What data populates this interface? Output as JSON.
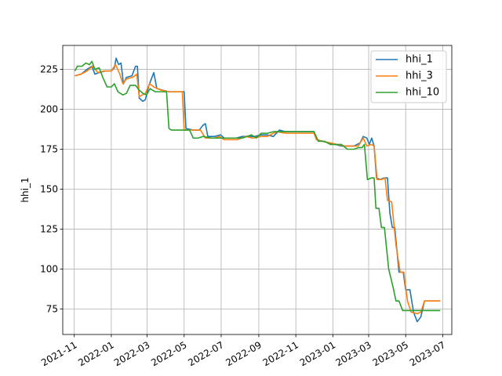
{
  "chart_data": {
    "type": "line",
    "title": "",
    "xlabel": "",
    "ylabel": "hhi_1",
    "grid": true,
    "legend_position": "top-right",
    "xlim": [
      "2021-10-13",
      "2023-07-16"
    ],
    "ylim": [
      59,
      240
    ],
    "x_ticks": [
      "2021-11-01",
      "2022-01-01",
      "2022-03-01",
      "2022-05-01",
      "2022-07-01",
      "2022-09-01",
      "2022-11-01",
      "2023-01-01",
      "2023-03-01",
      "2023-05-01",
      "2023-07-01"
    ],
    "x_tick_labels": [
      "2021-11",
      "2022-01",
      "2022-03",
      "2022-05",
      "2022-07",
      "2022-09",
      "2022-11",
      "2023-01",
      "2023-03",
      "2023-05",
      "2023-07"
    ],
    "y_ticks": [
      75,
      100,
      125,
      150,
      175,
      200,
      225
    ],
    "y_tick_labels": [
      "75",
      "100",
      "125",
      "150",
      "175",
      "200",
      "225"
    ],
    "series": [
      {
        "name": "hhi_1",
        "color": "#1f77b4",
        "points": [
          [
            "2021-11-02",
            221
          ],
          [
            "2021-11-12",
            222
          ],
          [
            "2021-11-22",
            225
          ],
          [
            "2021-11-30",
            227
          ],
          [
            "2021-12-05",
            222
          ],
          [
            "2021-12-12",
            223
          ],
          [
            "2021-12-22",
            224
          ],
          [
            "2022-01-01",
            224
          ],
          [
            "2022-01-06",
            226
          ],
          [
            "2022-01-09",
            232
          ],
          [
            "2022-01-13",
            228
          ],
          [
            "2022-01-17",
            229
          ],
          [
            "2022-01-21",
            216
          ],
          [
            "2022-01-26",
            220
          ],
          [
            "2022-02-04",
            221
          ],
          [
            "2022-02-10",
            227
          ],
          [
            "2022-02-13",
            227
          ],
          [
            "2022-02-16",
            207
          ],
          [
            "2022-02-22",
            205
          ],
          [
            "2022-02-26",
            206
          ],
          [
            "2022-03-04",
            215
          ],
          [
            "2022-03-12",
            223
          ],
          [
            "2022-03-17",
            213
          ],
          [
            "2022-03-26",
            212
          ],
          [
            "2022-04-06",
            211
          ],
          [
            "2022-04-16",
            211
          ],
          [
            "2022-04-26",
            211
          ],
          [
            "2022-05-01",
            211
          ],
          [
            "2022-05-04",
            188
          ],
          [
            "2022-05-16",
            187
          ],
          [
            "2022-05-26",
            187
          ],
          [
            "2022-06-01",
            190
          ],
          [
            "2022-06-05",
            191
          ],
          [
            "2022-06-09",
            183
          ],
          [
            "2022-06-20",
            183
          ],
          [
            "2022-06-30",
            184
          ],
          [
            "2022-07-06",
            182
          ],
          [
            "2022-07-16",
            182
          ],
          [
            "2022-07-26",
            182
          ],
          [
            "2022-08-05",
            183
          ],
          [
            "2022-08-15",
            183
          ],
          [
            "2022-08-25",
            183
          ],
          [
            "2022-09-05",
            184
          ],
          [
            "2022-09-15",
            184
          ],
          [
            "2022-09-25",
            183
          ],
          [
            "2022-10-05",
            187
          ],
          [
            "2022-10-15",
            186
          ],
          [
            "2022-10-25",
            186
          ],
          [
            "2022-11-05",
            186
          ],
          [
            "2022-11-15",
            186
          ],
          [
            "2022-11-25",
            186
          ],
          [
            "2022-12-01",
            186
          ],
          [
            "2022-12-05",
            181
          ],
          [
            "2022-12-15",
            180
          ],
          [
            "2022-12-25",
            179
          ],
          [
            "2023-01-05",
            178
          ],
          [
            "2023-01-15",
            177
          ],
          [
            "2023-01-25",
            177
          ],
          [
            "2023-02-05",
            177
          ],
          [
            "2023-02-15",
            179
          ],
          [
            "2023-02-20",
            183
          ],
          [
            "2023-02-26",
            182
          ],
          [
            "2023-03-02",
            178
          ],
          [
            "2023-03-06",
            182
          ],
          [
            "2023-03-10",
            177
          ],
          [
            "2023-03-14",
            157
          ],
          [
            "2023-03-20",
            156
          ],
          [
            "2023-03-26",
            157
          ],
          [
            "2023-04-01",
            157
          ],
          [
            "2023-04-05",
            135
          ],
          [
            "2023-04-09",
            126
          ],
          [
            "2023-04-13",
            126
          ],
          [
            "2023-04-20",
            98
          ],
          [
            "2023-04-27",
            98
          ],
          [
            "2023-05-01",
            87
          ],
          [
            "2023-05-08",
            87
          ],
          [
            "2023-05-14",
            73
          ],
          [
            "2023-05-20",
            67
          ],
          [
            "2023-05-26",
            70
          ],
          [
            "2023-06-01",
            80
          ],
          [
            "2023-06-13",
            80
          ],
          [
            "2023-06-27",
            80
          ]
        ]
      },
      {
        "name": "hhi_3",
        "color": "#ff7f0e",
        "points": [
          [
            "2021-11-02",
            221
          ],
          [
            "2021-11-12",
            222
          ],
          [
            "2021-11-22",
            224
          ],
          [
            "2021-12-01",
            227
          ],
          [
            "2021-12-10",
            223
          ],
          [
            "2021-12-20",
            224
          ],
          [
            "2022-01-01",
            224
          ],
          [
            "2022-01-08",
            228
          ],
          [
            "2022-01-15",
            222
          ],
          [
            "2022-01-20",
            216
          ],
          [
            "2022-01-26",
            219
          ],
          [
            "2022-02-05",
            220
          ],
          [
            "2022-02-12",
            222
          ],
          [
            "2022-02-16",
            208
          ],
          [
            "2022-02-26",
            210
          ],
          [
            "2022-03-05",
            216
          ],
          [
            "2022-03-12",
            214
          ],
          [
            "2022-03-24",
            212
          ],
          [
            "2022-04-06",
            211
          ],
          [
            "2022-04-18",
            211
          ],
          [
            "2022-04-28",
            211
          ],
          [
            "2022-05-01",
            187
          ],
          [
            "2022-05-16",
            187
          ],
          [
            "2022-05-28",
            187
          ],
          [
            "2022-06-05",
            182
          ],
          [
            "2022-06-20",
            182
          ],
          [
            "2022-06-28",
            183
          ],
          [
            "2022-07-06",
            181
          ],
          [
            "2022-07-18",
            181
          ],
          [
            "2022-07-28",
            181
          ],
          [
            "2022-08-10",
            183
          ],
          [
            "2022-08-22",
            182
          ],
          [
            "2022-09-05",
            183
          ],
          [
            "2022-09-15",
            183
          ],
          [
            "2022-09-25",
            185
          ],
          [
            "2022-10-01",
            186
          ],
          [
            "2022-10-15",
            185
          ],
          [
            "2022-10-25",
            185
          ],
          [
            "2022-11-05",
            185
          ],
          [
            "2022-11-15",
            185
          ],
          [
            "2022-11-25",
            185
          ],
          [
            "2022-12-01",
            185
          ],
          [
            "2022-12-05",
            181
          ],
          [
            "2022-12-15",
            180
          ],
          [
            "2022-12-28",
            179
          ],
          [
            "2023-01-08",
            178
          ],
          [
            "2023-01-20",
            177
          ],
          [
            "2023-02-02",
            177
          ],
          [
            "2023-02-12",
            177
          ],
          [
            "2023-02-20",
            182
          ],
          [
            "2023-02-26",
            177
          ],
          [
            "2023-03-05",
            178
          ],
          [
            "2023-03-10",
            177
          ],
          [
            "2023-03-15",
            156
          ],
          [
            "2023-03-22",
            156
          ],
          [
            "2023-03-28",
            157
          ],
          [
            "2023-04-01",
            143
          ],
          [
            "2023-04-08",
            142
          ],
          [
            "2023-04-15",
            115
          ],
          [
            "2023-04-22",
            98
          ],
          [
            "2023-04-28",
            98
          ],
          [
            "2023-05-04",
            80
          ],
          [
            "2023-05-10",
            73
          ],
          [
            "2023-05-20",
            72
          ],
          [
            "2023-05-26",
            73
          ],
          [
            "2023-06-01",
            80
          ],
          [
            "2023-06-13",
            80
          ],
          [
            "2023-06-27",
            80
          ]
        ]
      },
      {
        "name": "hhi_10",
        "color": "#2ca02c",
        "points": [
          [
            "2021-11-02",
            224
          ],
          [
            "2021-11-06",
            227
          ],
          [
            "2021-11-14",
            227
          ],
          [
            "2021-11-20",
            229
          ],
          [
            "2021-11-26",
            228
          ],
          [
            "2021-11-30",
            230
          ],
          [
            "2021-12-05",
            225
          ],
          [
            "2021-12-12",
            226
          ],
          [
            "2021-12-18",
            220
          ],
          [
            "2021-12-25",
            214
          ],
          [
            "2022-01-01",
            214
          ],
          [
            "2022-01-06",
            216
          ],
          [
            "2022-01-12",
            211
          ],
          [
            "2022-01-20",
            209
          ],
          [
            "2022-01-26",
            210
          ],
          [
            "2022-02-01",
            215
          ],
          [
            "2022-02-10",
            215
          ],
          [
            "2022-02-16",
            212
          ],
          [
            "2022-02-22",
            210
          ],
          [
            "2022-02-28",
            209
          ],
          [
            "2022-03-06",
            213
          ],
          [
            "2022-03-14",
            211
          ],
          [
            "2022-03-26",
            211
          ],
          [
            "2022-04-02",
            211
          ],
          [
            "2022-04-06",
            188
          ],
          [
            "2022-04-10",
            187
          ],
          [
            "2022-04-22",
            187
          ],
          [
            "2022-05-02",
            187
          ],
          [
            "2022-05-10",
            187
          ],
          [
            "2022-05-16",
            182
          ],
          [
            "2022-05-24",
            182
          ],
          [
            "2022-06-01",
            183
          ],
          [
            "2022-06-15",
            182
          ],
          [
            "2022-06-30",
            182
          ],
          [
            "2022-07-10",
            182
          ],
          [
            "2022-07-25",
            182
          ],
          [
            "2022-08-05",
            182
          ],
          [
            "2022-08-20",
            184
          ],
          [
            "2022-08-28",
            182
          ],
          [
            "2022-09-05",
            185
          ],
          [
            "2022-09-15",
            185
          ],
          [
            "2022-09-25",
            186
          ],
          [
            "2022-10-05",
            186
          ],
          [
            "2022-10-15",
            186
          ],
          [
            "2022-10-25",
            186
          ],
          [
            "2022-11-05",
            186
          ],
          [
            "2022-11-15",
            186
          ],
          [
            "2022-11-25",
            186
          ],
          [
            "2022-12-01",
            186
          ],
          [
            "2022-12-08",
            180
          ],
          [
            "2022-12-18",
            180
          ],
          [
            "2022-12-28",
            178
          ],
          [
            "2023-01-05",
            178
          ],
          [
            "2023-01-15",
            178
          ],
          [
            "2023-01-25",
            175
          ],
          [
            "2023-02-05",
            175
          ],
          [
            "2023-02-12",
            176
          ],
          [
            "2023-02-18",
            176
          ],
          [
            "2023-02-22",
            178
          ],
          [
            "2023-02-27",
            156
          ],
          [
            "2023-03-05",
            157
          ],
          [
            "2023-03-10",
            157
          ],
          [
            "2023-03-13",
            138
          ],
          [
            "2023-03-18",
            138
          ],
          [
            "2023-03-22",
            126
          ],
          [
            "2023-03-27",
            126
          ],
          [
            "2023-04-03",
            100
          ],
          [
            "2023-04-10",
            89
          ],
          [
            "2023-04-15",
            80
          ],
          [
            "2023-04-20",
            80
          ],
          [
            "2023-04-26",
            74
          ],
          [
            "2023-05-06",
            74
          ],
          [
            "2023-05-20",
            74
          ],
          [
            "2023-06-05",
            74
          ],
          [
            "2023-06-27",
            74
          ]
        ]
      }
    ]
  }
}
